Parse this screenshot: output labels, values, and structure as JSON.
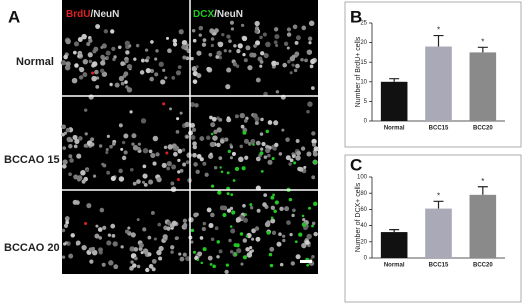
{
  "figure": {
    "panel": "A",
    "columns": [
      {
        "marker": "BrdU",
        "marker_color": "#e02020",
        "rest": "/NeuN"
      },
      {
        "marker": "DCX",
        "marker_color": "#22c722",
        "rest": "/NeuN"
      }
    ],
    "rows": [
      "Normal",
      "BCCAO 15",
      "BCCAO 20"
    ]
  },
  "chart_data": [
    {
      "type": "bar",
      "panel": "B",
      "ylabel": "Number of BrdU+ cells",
      "categories": [
        "Normal",
        "BCC15",
        "BCC20"
      ],
      "values": [
        10,
        19,
        17.5
      ],
      "errors": [
        0.8,
        2.8,
        1.3
      ],
      "colors": [
        "#111111",
        "#a9a9b8",
        "#8a8a8a"
      ],
      "significance": [
        null,
        "*",
        "*"
      ],
      "ylim": [
        0,
        25
      ],
      "yticks": [
        0,
        5,
        10,
        15,
        20,
        25
      ]
    },
    {
      "type": "bar",
      "panel": "C",
      "ylabel": "Number of DCX+ cells",
      "categories": [
        "Normal",
        "BCC15",
        "BCC20"
      ],
      "values": [
        32,
        61,
        78
      ],
      "errors": [
        3,
        9,
        10
      ],
      "colors": [
        "#111111",
        "#a9a9b8",
        "#8a8a8a"
      ],
      "significance": [
        null,
        "*",
        "*"
      ],
      "ylim": [
        0,
        100
      ],
      "yticks": [
        0,
        20,
        40,
        60,
        80,
        100
      ]
    }
  ]
}
